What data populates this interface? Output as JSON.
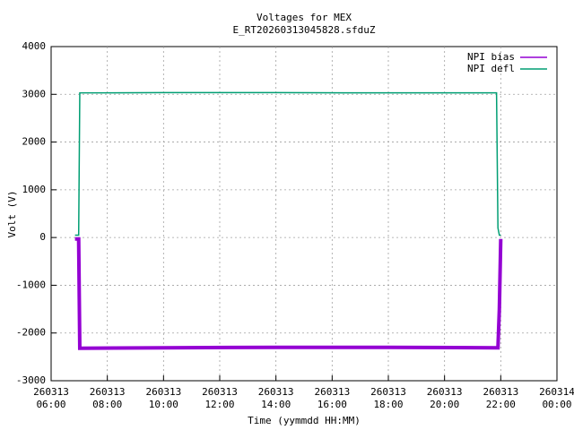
{
  "chart_data": {
    "type": "line",
    "title": "Voltages for MEX",
    "subtitle": "E_RT20260313045828.sfduZ",
    "x_label": "Time (yymmdd HH:MM)",
    "y_label": "Volt (V)",
    "x": [
      6.85,
      6.98,
      7.02,
      10.0,
      14.0,
      18.0,
      21.85,
      21.9,
      21.95,
      22.0
    ],
    "series": [
      {
        "name": "NPI bias",
        "color": "#9400d3",
        "values": [
          -30,
          -30,
          -2320,
          -2310,
          -2300,
          -2300,
          -2310,
          -2310,
          -1500,
          -30
        ]
      },
      {
        "name": "NPI defl",
        "color": "#009e73",
        "values": [
          50,
          50,
          3030,
          3035,
          3035,
          3030,
          3030,
          200,
          50,
          50
        ]
      }
    ],
    "xlim": [
      6,
      24
    ],
    "xticks": [
      {
        "value": 6,
        "label": "260313 06:00"
      },
      {
        "value": 8,
        "label": "260313 08:00"
      },
      {
        "value": 10,
        "label": "260313 10:00"
      },
      {
        "value": 12,
        "label": "260313 12:00"
      },
      {
        "value": 14,
        "label": "260313 14:00"
      },
      {
        "value": 16,
        "label": "260313 16:00"
      },
      {
        "value": 18,
        "label": "260313 18:00"
      },
      {
        "value": 20,
        "label": "260313 20:00"
      },
      {
        "value": 22,
        "label": "260313 22:00"
      },
      {
        "value": 24,
        "label": "260314 00:00"
      }
    ],
    "ylim": [
      -3000,
      4000
    ],
    "yticks": [
      -3000,
      -2000,
      -1000,
      0,
      1000,
      2000,
      3000,
      4000
    ],
    "grid": true,
    "legend": "top-right"
  }
}
